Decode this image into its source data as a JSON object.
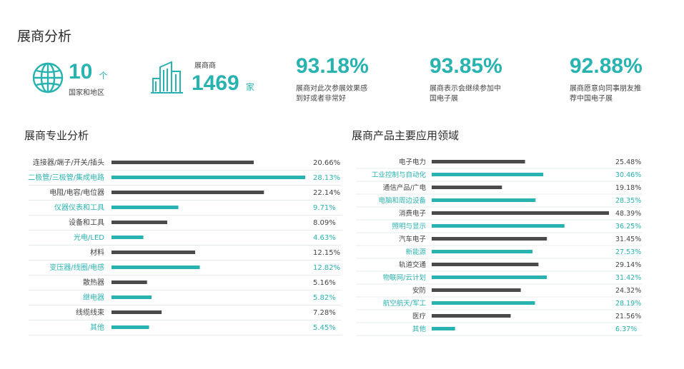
{
  "page": {
    "title": "展商分析"
  },
  "stats": {
    "countries": {
      "value": "10",
      "unit": "个",
      "label": "国家和地区"
    },
    "exhibitors": {
      "label": "展商商",
      "value": "1469",
      "unit": "家"
    },
    "kpis": [
      {
        "value": "93.18%",
        "line1": "展商对此次参展效果感",
        "line2": "到好或者非常好"
      },
      {
        "value": "93.85%",
        "line1": "展商表示会继续参加中",
        "line2": "国电子展"
      },
      {
        "value": "92.88%",
        "line1": "展商愿意向同事朋友推",
        "line2": "荐中国电子展"
      }
    ]
  },
  "colors": {
    "dark": "#4a4a4a",
    "teal": "#29b3b0",
    "grid": "#e6ecec"
  },
  "chart_data": [
    {
      "type": "bar",
      "orientation": "horizontal",
      "title": "展商专业分析",
      "categories": [
        "连接器/端子/开关/插头",
        "二极管/三极管/集成电路",
        "电阻/电容/电位器",
        "仪器仪表和工具",
        "设备和工具",
        "光电/LED",
        "材料",
        "变压器/线圈/电感",
        "散热器",
        "继电器",
        "线缆线束",
        "其他"
      ],
      "values": [
        20.66,
        28.13,
        22.14,
        9.71,
        8.09,
        4.63,
        12.15,
        12.82,
        5.16,
        5.82,
        7.28,
        5.45
      ],
      "labels": [
        "20.66%",
        "28.13%",
        "22.14%",
        "9.71%",
        "8.09%",
        "4.63%",
        "12.15%",
        "12.82%",
        "5.16%",
        "5.82%",
        "7.28%",
        "5.45%"
      ],
      "xlim": [
        0,
        28.13
      ]
    },
    {
      "type": "bar",
      "orientation": "horizontal",
      "title": "展商产品主要应用领域",
      "categories": [
        "电子电力",
        "工业控制与自动化",
        "通信产品/广电",
        "电脑和周边设备",
        "消费电子",
        "照明与显示",
        "汽车电子",
        "新能源",
        "轨道交通",
        "物联网/云计划",
        "安防",
        "航空航天/军工",
        "医疗",
        "其他"
      ],
      "values": [
        25.48,
        30.46,
        19.18,
        28.35,
        48.39,
        36.25,
        31.45,
        27.53,
        29.14,
        31.42,
        24.32,
        28.19,
        21.56,
        6.37
      ],
      "labels": [
        "25.48%",
        "30.46%",
        "19.18%",
        "28.35%",
        "48.39%",
        "36.25%",
        "31.45%",
        "27.53%",
        "29.14%",
        "31.42%",
        "24.32%",
        "28.19%",
        "21.56%",
        "6.37%"
      ],
      "xlim": [
        0,
        48.39
      ]
    }
  ]
}
